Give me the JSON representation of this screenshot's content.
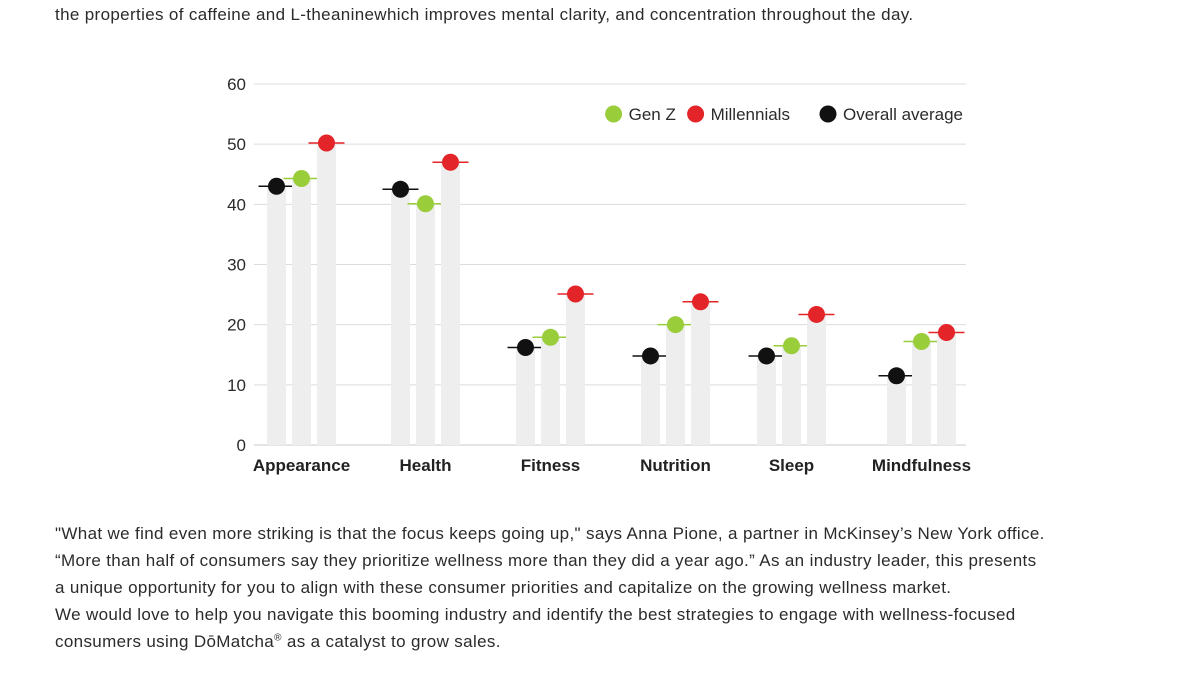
{
  "intro_line": "the properties of caffeine and L-theaninewhich improves mental clarity, and concentration throughout the day.",
  "chart_data": {
    "type": "scatter",
    "categories": [
      "Appearance",
      "Health",
      "Fitness",
      "Nutrition",
      "Sleep",
      "Mindfulness"
    ],
    "series": [
      {
        "name": "Overall average",
        "color": "#111111",
        "values": [
          43,
          42.5,
          16.2,
          14.8,
          14.8,
          11.5
        ]
      },
      {
        "name": "Gen Z",
        "color": "#9acd3a",
        "values": [
          44.3,
          40.1,
          17.9,
          20,
          16.5,
          17.2
        ]
      },
      {
        "name": "Millennials",
        "color": "#e32428",
        "values": [
          50.2,
          47,
          25.1,
          23.8,
          21.7,
          18.7
        ]
      }
    ],
    "legend_order": [
      "Gen Z",
      "Millennials",
      "Overall average"
    ],
    "legend_position": "top-right",
    "ylim": [
      0,
      60
    ],
    "yticks": [
      "0",
      "10",
      "20",
      "30",
      "40",
      "50",
      "60"
    ],
    "grid": true,
    "bar_color": "#eeeeee"
  },
  "quote": {
    "line1": "\"What we find even more striking is that the focus keeps going up,\" says Anna Pione, a partner in McKinsey’s New York office.",
    "line2": "“More than half of consumers say they prioritize wellness more than they did a year ago.” As an industry leader, this presents",
    "line3": "a unique opportunity for you to align with these consumer priorities and capitalize on the growing wellness market.",
    "line4": "We would love to help you navigate this booming industry and identify the best strategies to engage with wellness-focused",
    "line5_before": "consumers using DōMatcha",
    "line5_reg": "®",
    "line5_after": " as a catalyst to grow sales."
  }
}
